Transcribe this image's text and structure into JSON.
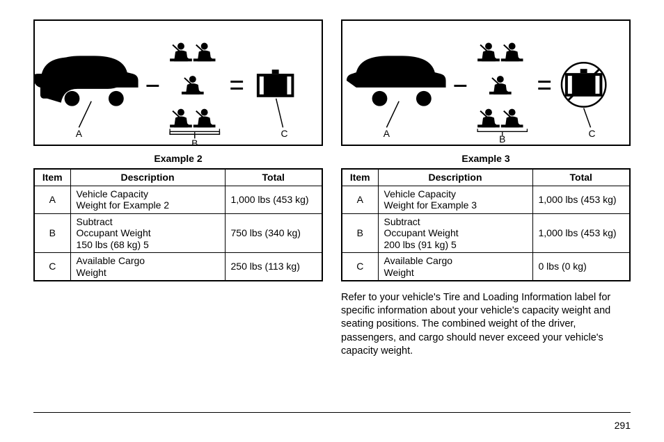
{
  "page_number": "291",
  "note_text": "Refer to your vehicle's Tire and Loading Information label for specific information about your vehicle's capacity weight and seating positions. The combined weight of the driver, passengers, and cargo should never exceed your vehicle's capacity weight.",
  "columns": [
    {
      "title": "Example 2",
      "diagram": {
        "labelA": "A",
        "labelB": "B",
        "labelC": "C",
        "cargo_crossed": false
      },
      "table": {
        "headers": {
          "item": "Item",
          "desc": "Description",
          "total": "Total"
        },
        "rows": [
          {
            "item": "A",
            "desc": "Vehicle Capacity\nWeight for Example 2",
            "total": "1,000 lbs (453 kg)"
          },
          {
            "item": "B",
            "desc": "Subtract\nOccupant Weight\n150 lbs (68  kg)    5",
            "total": "750 lbs (340 kg)"
          },
          {
            "item": "C",
            "desc": "Available Cargo\nWeight",
            "total": "250 lbs (113 kg)"
          }
        ]
      }
    },
    {
      "title": "Example 3",
      "diagram": {
        "labelA": "A",
        "labelB": "B",
        "labelC": "C",
        "cargo_crossed": true
      },
      "table": {
        "headers": {
          "item": "Item",
          "desc": "Description",
          "total": "Total"
        },
        "rows": [
          {
            "item": "A",
            "desc": "Vehicle Capacity\nWeight for Example 3",
            "total": "1,000 lbs (453 kg)"
          },
          {
            "item": "B",
            "desc": "Subtract\nOccupant Weight\n200 lbs (91  kg)    5",
            "total": "1,000 lbs (453 kg)"
          },
          {
            "item": "C",
            "desc": "Available Cargo\nWeight",
            "total": "0 lbs (0 kg)"
          }
        ]
      }
    }
  ],
  "svg": {
    "colors": {
      "fg": "#000000",
      "bg": "#ffffff"
    },
    "stroke_width": 2
  }
}
